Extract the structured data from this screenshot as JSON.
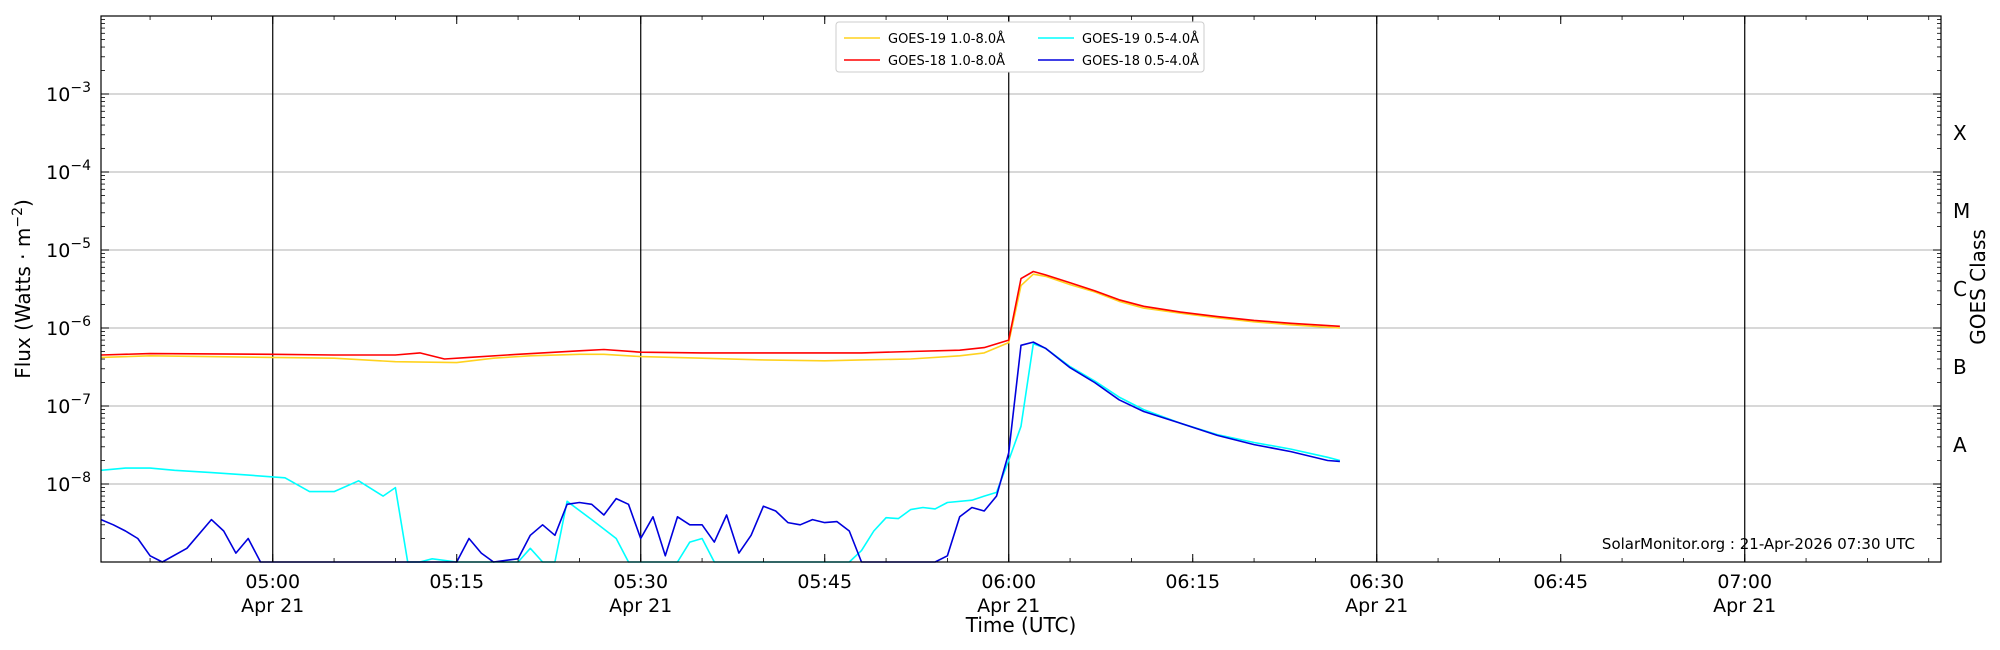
{
  "chart_data": {
    "type": "line",
    "ylabel": "Flux (Watts · m⁻²)",
    "xlabel": "Time (UTC)",
    "right_label": "GOES Class",
    "y_scale": "log",
    "ylim": [
      1e-09,
      0.01
    ],
    "xlim": [
      "04:46",
      "07:16"
    ],
    "y_ticks": [
      {
        "value": 1e-08,
        "base": "10",
        "exp": "−8"
      },
      {
        "value": 1e-07,
        "base": "10",
        "exp": "−7"
      },
      {
        "value": 1e-06,
        "base": "10",
        "exp": "−6"
      },
      {
        "value": 1e-05,
        "base": "10",
        "exp": "−5"
      },
      {
        "value": 0.0001,
        "base": "10",
        "exp": "−4"
      },
      {
        "value": 0.001,
        "base": "10",
        "exp": "−3"
      }
    ],
    "x_ticks": [
      {
        "time": "05:00",
        "label": "05:00",
        "date": "Apr 21",
        "major": true
      },
      {
        "time": "05:15",
        "label": "05:15",
        "date": "",
        "major": false
      },
      {
        "time": "05:30",
        "label": "05:30",
        "date": "Apr 21",
        "major": true
      },
      {
        "time": "05:45",
        "label": "05:45",
        "date": "",
        "major": false
      },
      {
        "time": "06:00",
        "label": "06:00",
        "date": "Apr 21",
        "major": true
      },
      {
        "time": "06:15",
        "label": "06:15",
        "date": "",
        "major": false
      },
      {
        "time": "06:30",
        "label": "06:30",
        "date": "Apr 21",
        "major": true
      },
      {
        "time": "06:45",
        "label": "06:45",
        "date": "",
        "major": false
      },
      {
        "time": "07:00",
        "label": "07:00",
        "date": "Apr 21",
        "major": true
      }
    ],
    "goes_classes": [
      {
        "label": "A",
        "value": 3.16e-08
      },
      {
        "label": "B",
        "value": 3.16e-07
      },
      {
        "label": "C",
        "value": 3.16e-06
      },
      {
        "label": "M",
        "value": 3.16e-05
      },
      {
        "label": "X",
        "value": 0.000316
      }
    ],
    "legend_position": "top-center",
    "grid": "horizontal at decades",
    "credit": "SolarMonitor.org : 21-Apr-2026 07:30 UTC",
    "series": [
      {
        "name": "GOES-19 1.0-8.0Å",
        "color": "#ffd21f",
        "points": [
          [
            "04:46",
            4.2e-07
          ],
          [
            "04:50",
            4.4e-07
          ],
          [
            "05:00",
            4.2e-07
          ],
          [
            "05:05",
            4.1e-07
          ],
          [
            "05:10",
            3.7e-07
          ],
          [
            "05:15",
            3.6e-07
          ],
          [
            "05:18",
            4.1e-07
          ],
          [
            "05:21",
            4.4e-07
          ],
          [
            "05:25",
            4.6e-07
          ],
          [
            "05:27",
            4.6e-07
          ],
          [
            "05:30",
            4.3e-07
          ],
          [
            "05:35",
            4.1e-07
          ],
          [
            "05:40",
            3.9e-07
          ],
          [
            "05:45",
            3.8e-07
          ],
          [
            "05:48",
            3.9e-07
          ],
          [
            "05:52",
            4e-07
          ],
          [
            "05:56",
            4.4e-07
          ],
          [
            "05:58",
            4.8e-07
          ],
          [
            "06:00",
            6.5e-07
          ],
          [
            "06:01",
            3.5e-06
          ],
          [
            "06:02",
            4.9e-06
          ],
          [
            "06:03",
            4.6e-06
          ],
          [
            "06:05",
            3.6e-06
          ],
          [
            "06:07",
            2.9e-06
          ],
          [
            "06:09",
            2.2e-06
          ],
          [
            "06:11",
            1.8e-06
          ],
          [
            "06:14",
            1.55e-06
          ],
          [
            "06:17",
            1.35e-06
          ],
          [
            "06:20",
            1.2e-06
          ],
          [
            "06:23",
            1.1e-06
          ],
          [
            "06:27",
            1e-06
          ]
        ]
      },
      {
        "name": "GOES-18 1.0-8.0Å",
        "color": "#ff0000",
        "points": [
          [
            "04:46",
            4.5e-07
          ],
          [
            "04:50",
            4.7e-07
          ],
          [
            "05:00",
            4.6e-07
          ],
          [
            "05:05",
            4.5e-07
          ],
          [
            "05:10",
            4.5e-07
          ],
          [
            "05:12",
            4.8e-07
          ],
          [
            "05:14",
            4e-07
          ],
          [
            "05:16",
            4.2e-07
          ],
          [
            "05:20",
            4.6e-07
          ],
          [
            "05:25",
            5.1e-07
          ],
          [
            "05:27",
            5.3e-07
          ],
          [
            "05:30",
            4.9e-07
          ],
          [
            "05:35",
            4.8e-07
          ],
          [
            "05:40",
            4.8e-07
          ],
          [
            "05:45",
            4.8e-07
          ],
          [
            "05:48",
            4.8e-07
          ],
          [
            "05:52",
            5e-07
          ],
          [
            "05:56",
            5.2e-07
          ],
          [
            "05:58",
            5.6e-07
          ],
          [
            "06:00",
            7e-07
          ],
          [
            "06:01",
            4.3e-06
          ],
          [
            "06:02",
            5.3e-06
          ],
          [
            "06:03",
            4.8e-06
          ],
          [
            "06:05",
            3.8e-06
          ],
          [
            "06:07",
            3e-06
          ],
          [
            "06:09",
            2.3e-06
          ],
          [
            "06:11",
            1.9e-06
          ],
          [
            "06:14",
            1.6e-06
          ],
          [
            "06:17",
            1.4e-06
          ],
          [
            "06:20",
            1.25e-06
          ],
          [
            "06:23",
            1.15e-06
          ],
          [
            "06:27",
            1.05e-06
          ]
        ]
      },
      {
        "name": "GOES-19 0.5-4.0Å",
        "color": "#00ffff",
        "points": [
          [
            "04:46",
            1.5e-08
          ],
          [
            "04:48",
            1.6e-08
          ],
          [
            "04:50",
            1.6e-08
          ],
          [
            "04:52",
            1.5e-08
          ],
          [
            "04:55",
            1.4e-08
          ],
          [
            "04:58",
            1.3e-08
          ],
          [
            "05:01",
            1.2e-08
          ],
          [
            "05:03",
            8e-09
          ],
          [
            "05:05",
            8e-09
          ],
          [
            "05:07",
            1.1e-08
          ],
          [
            "05:09",
            7e-09
          ],
          [
            "05:10",
            9e-09
          ],
          [
            "05:11",
            1e-09
          ],
          [
            "05:12",
            1e-09
          ],
          [
            "05:13",
            1.1e-09
          ],
          [
            "05:15",
            1e-09
          ],
          [
            "05:20",
            1e-09
          ],
          [
            "05:21",
            1.5e-09
          ],
          [
            "05:22",
            1e-09
          ],
          [
            "05:23",
            1e-09
          ],
          [
            "05:24",
            6e-09
          ],
          [
            "05:26",
            3.5e-09
          ],
          [
            "05:28",
            2e-09
          ],
          [
            "05:29",
            1e-09
          ],
          [
            "05:33",
            1e-09
          ],
          [
            "05:34",
            1.8e-09
          ],
          [
            "05:35",
            2e-09
          ],
          [
            "05:36",
            1e-09
          ],
          [
            "05:47",
            1e-09
          ],
          [
            "05:48",
            1.4e-09
          ],
          [
            "05:49",
            2.5e-09
          ],
          [
            "05:50",
            3.7e-09
          ],
          [
            "05:51",
            3.6e-09
          ],
          [
            "05:52",
            4.7e-09
          ],
          [
            "05:53",
            5e-09
          ],
          [
            "05:54",
            4.8e-09
          ],
          [
            "05:55",
            5.8e-09
          ],
          [
            "05:57",
            6.2e-09
          ],
          [
            "05:58",
            7e-09
          ],
          [
            "05:59",
            7.8e-09
          ],
          [
            "06:00",
            2e-08
          ],
          [
            "06:01",
            5.5e-08
          ],
          [
            "06:02",
            6.3e-07
          ],
          [
            "06:03",
            5.5e-07
          ],
          [
            "06:05",
            3.2e-07
          ],
          [
            "06:07",
            2.1e-07
          ],
          [
            "06:09",
            1.3e-07
          ],
          [
            "06:11",
            9e-08
          ],
          [
            "06:14",
            6e-08
          ],
          [
            "06:17",
            4.3e-08
          ],
          [
            "06:20",
            3.4e-08
          ],
          [
            "06:23",
            2.8e-08
          ],
          [
            "06:26",
            2.2e-08
          ],
          [
            "06:27",
            2e-08
          ]
        ]
      },
      {
        "name": "GOES-18 0.5-4.0Å",
        "color": "#0000dd",
        "points": [
          [
            "04:46",
            3.5e-09
          ],
          [
            "04:47",
            3e-09
          ],
          [
            "04:48",
            2.5e-09
          ],
          [
            "04:49",
            2e-09
          ],
          [
            "04:50",
            1.2e-09
          ],
          [
            "04:51",
            1e-09
          ],
          [
            "04:53",
            1.5e-09
          ],
          [
            "04:55",
            3.5e-09
          ],
          [
            "04:56",
            2.5e-09
          ],
          [
            "04:57",
            1.3e-09
          ],
          [
            "04:58",
            2e-09
          ],
          [
            "04:59",
            1e-09
          ],
          [
            "05:15",
            1e-09
          ],
          [
            "05:16",
            2e-09
          ],
          [
            "05:17",
            1.3e-09
          ],
          [
            "05:18",
            1e-09
          ],
          [
            "05:20",
            1.1e-09
          ],
          [
            "05:21",
            2.2e-09
          ],
          [
            "05:22",
            3e-09
          ],
          [
            "05:23",
            2.2e-09
          ],
          [
            "05:24",
            5.5e-09
          ],
          [
            "05:25",
            5.8e-09
          ],
          [
            "05:26",
            5.5e-09
          ],
          [
            "05:27",
            4e-09
          ],
          [
            "05:28",
            6.5e-09
          ],
          [
            "05:29",
            5.5e-09
          ],
          [
            "05:30",
            2e-09
          ],
          [
            "05:31",
            3.8e-09
          ],
          [
            "05:32",
            1.2e-09
          ],
          [
            "05:33",
            3.8e-09
          ],
          [
            "05:34",
            3e-09
          ],
          [
            "05:35",
            3e-09
          ],
          [
            "05:36",
            1.8e-09
          ],
          [
            "05:37",
            4e-09
          ],
          [
            "05:38",
            1.3e-09
          ],
          [
            "05:39",
            2.2e-09
          ],
          [
            "05:40",
            5.2e-09
          ],
          [
            "05:41",
            4.5e-09
          ],
          [
            "05:42",
            3.2e-09
          ],
          [
            "05:43",
            3e-09
          ],
          [
            "05:44",
            3.5e-09
          ],
          [
            "05:45",
            3.2e-09
          ],
          [
            "05:46",
            3.3e-09
          ],
          [
            "05:47",
            2.5e-09
          ],
          [
            "05:48",
            1e-09
          ],
          [
            "05:54",
            1e-09
          ],
          [
            "05:55",
            1.2e-09
          ],
          [
            "05:56",
            3.8e-09
          ],
          [
            "05:57",
            5e-09
          ],
          [
            "05:58",
            4.5e-09
          ],
          [
            "05:59",
            7e-09
          ],
          [
            "06:00",
            2.5e-08
          ],
          [
            "06:01",
            6e-07
          ],
          [
            "06:02",
            6.6e-07
          ],
          [
            "06:03",
            5.5e-07
          ],
          [
            "06:05",
            3.1e-07
          ],
          [
            "06:07",
            2e-07
          ],
          [
            "06:09",
            1.2e-07
          ],
          [
            "06:11",
            8.5e-08
          ],
          [
            "06:14",
            6e-08
          ],
          [
            "06:17",
            4.2e-08
          ],
          [
            "06:20",
            3.2e-08
          ],
          [
            "06:23",
            2.6e-08
          ],
          [
            "06:26",
            2e-08
          ],
          [
            "06:27",
            1.95e-08
          ]
        ]
      }
    ]
  }
}
